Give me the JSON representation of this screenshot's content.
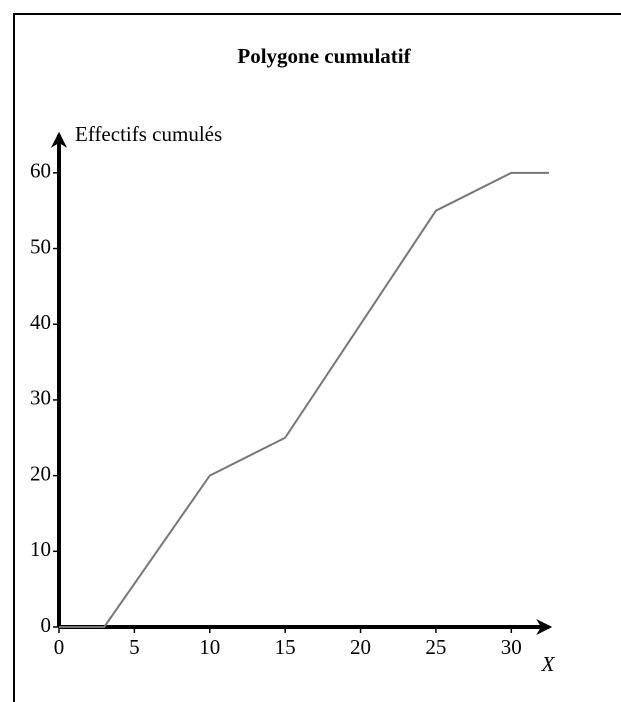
{
  "chart_data": {
    "type": "line",
    "title": "Polygone cumulatif",
    "xlabel": "X",
    "ylabel": "Effectifs cumulés",
    "x": [
      0,
      3,
      10,
      15,
      25,
      30,
      32.5
    ],
    "series": [
      {
        "name": "Effectifs cumulés",
        "color": "#777777",
        "values": [
          0,
          0,
          20,
          25,
          55,
          60,
          60
        ]
      }
    ],
    "xlim": [
      0,
      32.5
    ],
    "ylim": [
      0,
      65
    ],
    "xticks": [
      0,
      5,
      10,
      15,
      20,
      25,
      30
    ],
    "yticks": [
      0,
      10,
      20,
      30,
      40,
      50,
      60
    ]
  }
}
